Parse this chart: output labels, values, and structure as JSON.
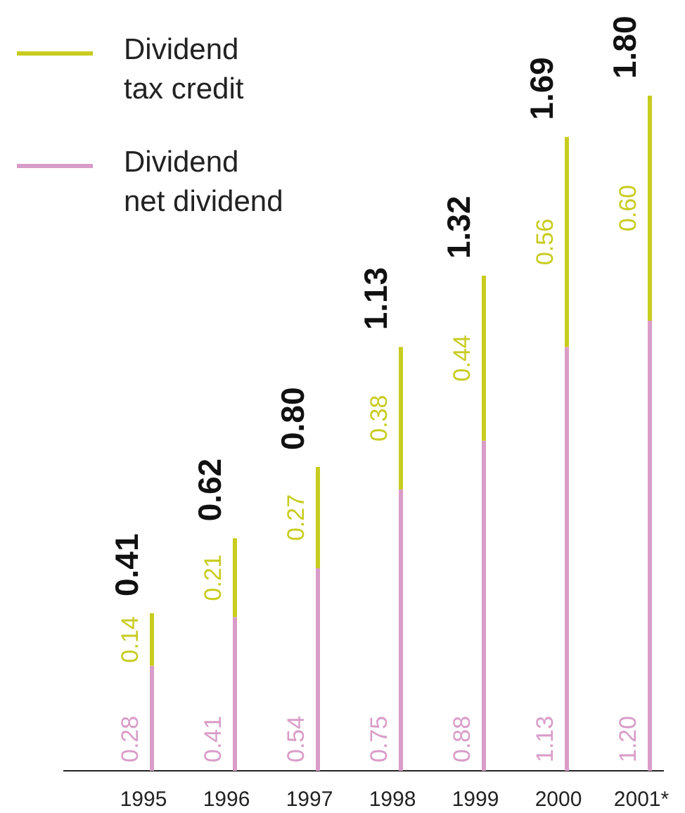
{
  "chart_data": {
    "type": "bar",
    "stacked": true,
    "categories": [
      "1995",
      "1996",
      "1997",
      "1998",
      "1999",
      "2000",
      "2001*"
    ],
    "series": [
      {
        "name": "Dividend\nnet dividend",
        "color": "#d99cc8",
        "values": [
          0.28,
          0.41,
          0.54,
          0.75,
          0.88,
          1.13,
          1.2
        ],
        "value_labels": [
          "0.28",
          "0.41",
          "0.54",
          "0.75",
          "0.88",
          "1.13",
          "1.20"
        ]
      },
      {
        "name": "Dividend\ntax credit",
        "color": "#c8cc1e",
        "values": [
          0.14,
          0.21,
          0.27,
          0.38,
          0.44,
          0.56,
          0.6
        ],
        "value_labels": [
          "0.14",
          "0.21",
          "0.27",
          "0.38",
          "0.44",
          "0.56",
          "0.60"
        ]
      }
    ],
    "totals": [
      "0.41",
      "0.62",
      "0.80",
      "1.13",
      "1.32",
      "1.69",
      "1.80"
    ],
    "legend": "top left",
    "grid": false
  }
}
